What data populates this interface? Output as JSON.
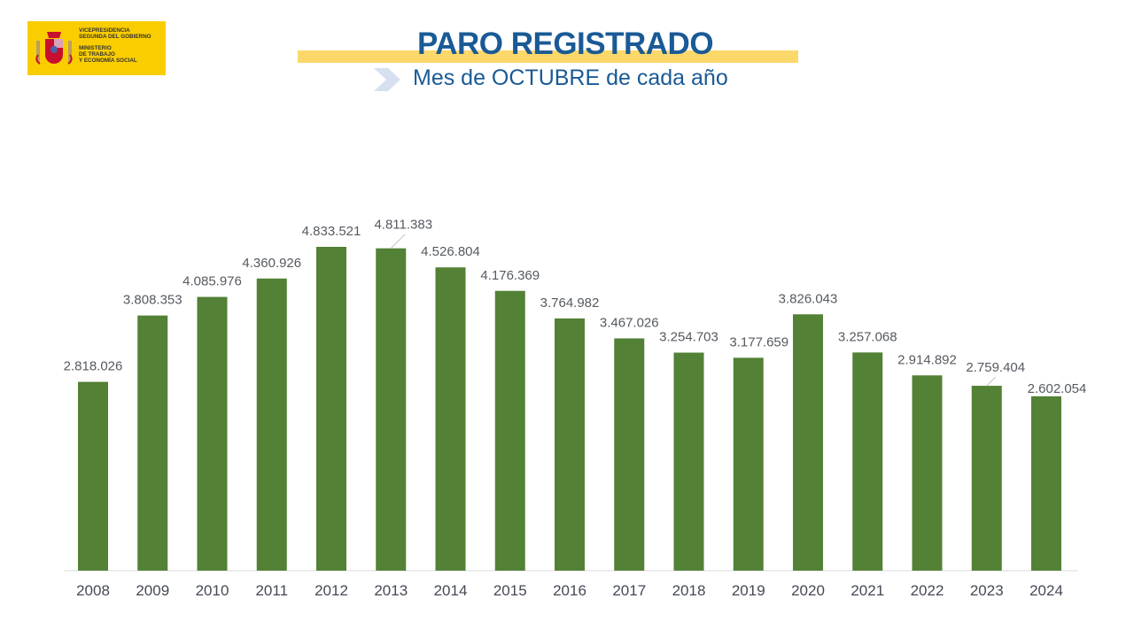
{
  "logo": {
    "line1": "VICEPRESIDENCIA",
    "line2": "SEGUNDA DEL GOBIERNO",
    "line3": "MINISTERIO",
    "line4": "DE TRABAJO",
    "line5": "Y ECONOMÍA SOCIAL"
  },
  "header": {
    "title": "PARO REGISTRADO",
    "subtitle": "Mes de OCTUBRE de cada año"
  },
  "colors": {
    "bar": "#538135",
    "title": "#1a5a96",
    "highlight": "#fcd86a",
    "logo_bg": "#f9cd00"
  },
  "chart_data": {
    "type": "bar",
    "categories": [
      "2008",
      "2009",
      "2010",
      "2011",
      "2012",
      "2013",
      "2014",
      "2015",
      "2016",
      "2017",
      "2018",
      "2019",
      "2020",
      "2021",
      "2022",
      "2023",
      "2024"
    ],
    "values": [
      2818026,
      3808353,
      4085976,
      4360926,
      4833521,
      4811383,
      4526804,
      4176369,
      3764982,
      3467026,
      3254703,
      3177659,
      3826043,
      3257068,
      2914892,
      2759404,
      2602054
    ],
    "data_labels": [
      "2.818.026",
      "3.808.353",
      "4.085.976",
      "4.360.926",
      "4.833.521",
      "4.811.383",
      "4.526.804",
      "4.176.369",
      "3.764.982",
      "3.467.026",
      "3.254.703",
      "3.177.659",
      "3.826.043",
      "3.257.068",
      "2.914.892",
      "2.759.404",
      "2.602.054"
    ],
    "title": "PARO REGISTRADO",
    "subtitle": "Mes de OCTUBRE de cada año",
    "xlabel": "",
    "ylabel": "",
    "ylim": [
      0,
      4833521
    ],
    "grid": false,
    "legend": "none"
  }
}
